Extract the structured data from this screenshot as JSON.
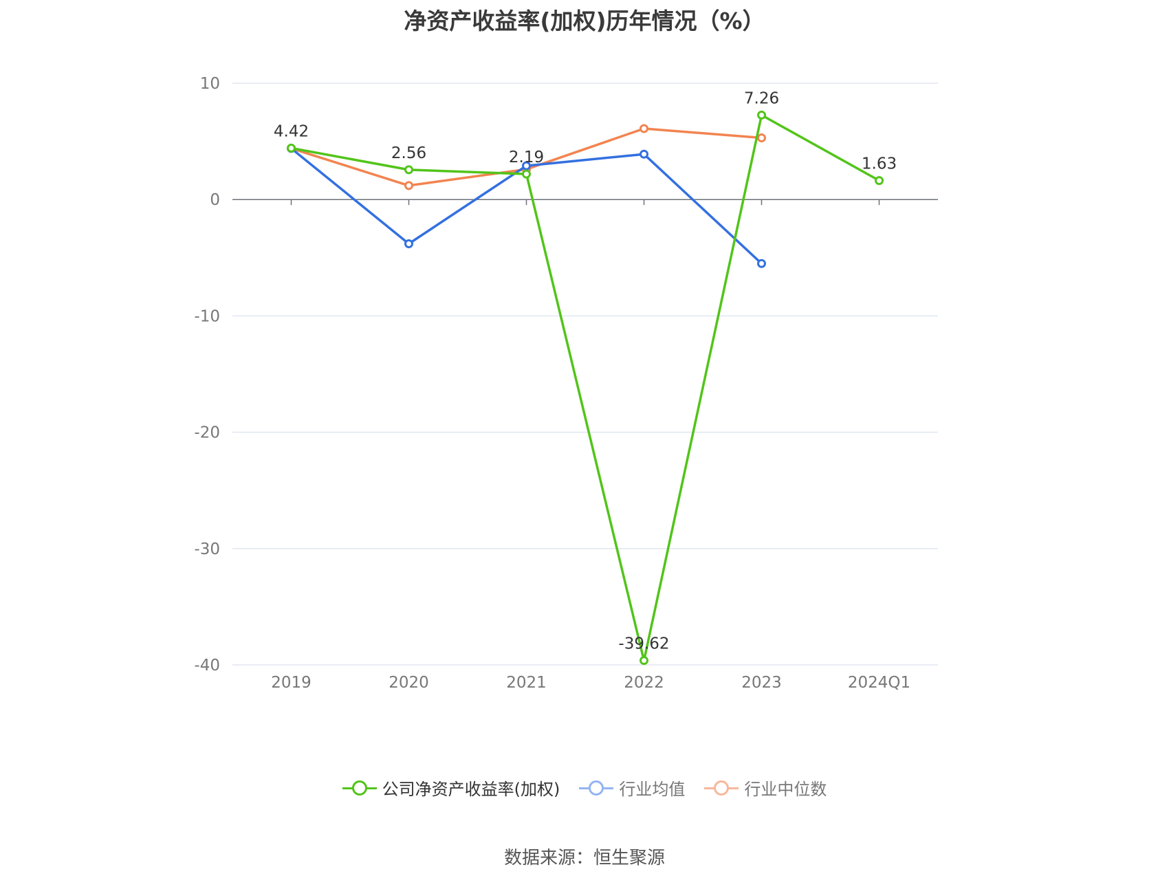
{
  "chart_data": {
    "type": "line",
    "title": "净资产收益率(加权)历年情况（%）",
    "categories": [
      "2019",
      "2020",
      "2021",
      "2022",
      "2023",
      "2024Q1"
    ],
    "ylim": [
      -40,
      10
    ],
    "yticks": [
      10,
      0,
      -10,
      -20,
      -30,
      -40
    ],
    "grid": true,
    "legend_position": "bottom",
    "series": [
      {
        "name": "公司净资产收益率(加权)",
        "color": "#52c41a",
        "values": [
          4.42,
          2.56,
          2.19,
          -39.62,
          7.26,
          1.63
        ],
        "labels": true
      },
      {
        "name": "行业均值",
        "color": "#3370e0",
        "values": [
          4.4,
          -3.8,
          2.9,
          3.9,
          -5.5,
          null
        ],
        "labels": false
      },
      {
        "name": "行业中位数",
        "color": "#f28450",
        "values": [
          4.4,
          1.2,
          2.6,
          6.1,
          5.3,
          null
        ],
        "labels": false
      }
    ],
    "legend_fade_colors": [
      "#52c41a",
      "#93b5f2",
      "#f7b89b"
    ]
  },
  "source": "数据来源：恒生聚源"
}
